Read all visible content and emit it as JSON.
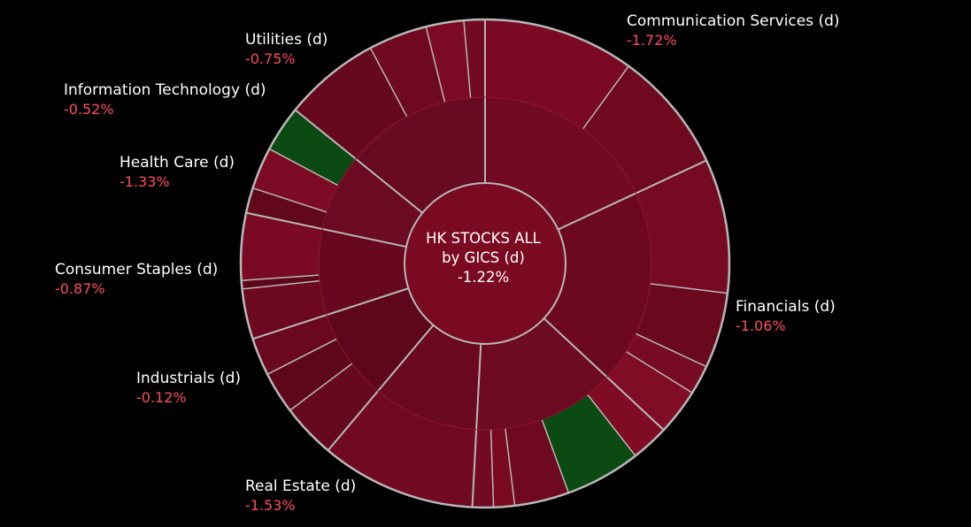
{
  "chart_data": {
    "type": "sunburst",
    "title": "HK STOCKS ALL",
    "subtitle": "by GICS (d)",
    "total_change": "-1.22%",
    "colors": {
      "background": "#000000",
      "border": "#b8b8b8",
      "negative": "#7a0a22",
      "positive": "#0b4a12",
      "label_text": "#ffffff",
      "change_text": "#ff4d5e"
    },
    "sectors": [
      {
        "name": "Communication Services (d)",
        "change": "-1.72%",
        "start": 0,
        "end": 65,
        "inner": "#730a23",
        "outer": [
          {
            "end": 36,
            "color": "#7a0a24"
          },
          {
            "end": 65,
            "color": "#6e0920"
          }
        ]
      },
      {
        "name": "Financials (d)",
        "change": "-1.06%",
        "start": 65,
        "end": 133,
        "inner": "#6c091e",
        "outer": [
          {
            "end": 97,
            "color": "#750a22"
          },
          {
            "end": 115,
            "color": "#6a081e"
          },
          {
            "end": 122,
            "color": "#780b24"
          },
          {
            "end": 133,
            "color": "#810c26"
          }
        ]
      },
      {
        "name": "Real Estate (d)",
        "change": "-1.53%",
        "start": 133,
        "end": 183,
        "inner": "#6e0a22",
        "outer": [
          {
            "end": 142,
            "color": "#7f0b25"
          },
          {
            "end": 160,
            "color": "#0b4a12"
          },
          {
            "end": 173,
            "color": "#6e0920"
          },
          {
            "end": 178,
            "color": "#7a0a22"
          },
          {
            "end": 183,
            "color": "#730a23"
          }
        ]
      },
      {
        "name": "Industrials (d)",
        "change": "-0.12%",
        "start": 183,
        "end": 220,
        "inner": "#6a091f",
        "outer": [
          {
            "end": 220,
            "color": "#700a22"
          }
        ]
      },
      {
        "name": "Consumer Staples (d)",
        "change": "-0.87%",
        "start": 220,
        "end": 252,
        "inner": "#5e071c",
        "outer": [
          {
            "end": 233,
            "color": "#66081e"
          },
          {
            "end": 243,
            "color": "#5e071b"
          },
          {
            "end": 252,
            "color": "#6a081f"
          }
        ]
      },
      {
        "name": "Health Care (d)",
        "change": "-1.33%",
        "start": 252,
        "end": 282,
        "inner": "#670820",
        "outer": [
          {
            "end": 264,
            "color": "#6c0920"
          },
          {
            "end": 266,
            "color": "#5e071a"
          },
          {
            "end": 282,
            "color": "#7a0a24"
          }
        ]
      },
      {
        "name": "Information Technology (d)",
        "change": "-0.52%",
        "start": 282,
        "end": 309,
        "inner": "#6b0a22",
        "outer": [
          {
            "end": 288,
            "color": "#62081d"
          },
          {
            "end": 298,
            "color": "#7d0a25"
          },
          {
            "end": 309,
            "color": "#0b4a12"
          }
        ]
      },
      {
        "name": "Utilities (d)",
        "change": "-0.75%",
        "start": 309,
        "end": 360,
        "inner": "#680a22",
        "outer": [
          {
            "end": 332,
            "color": "#66081e"
          },
          {
            "end": 346,
            "color": "#6e0920"
          },
          {
            "end": 355,
            "color": "#7c0a24"
          },
          {
            "end": 360,
            "color": "#720a22"
          }
        ]
      }
    ]
  }
}
